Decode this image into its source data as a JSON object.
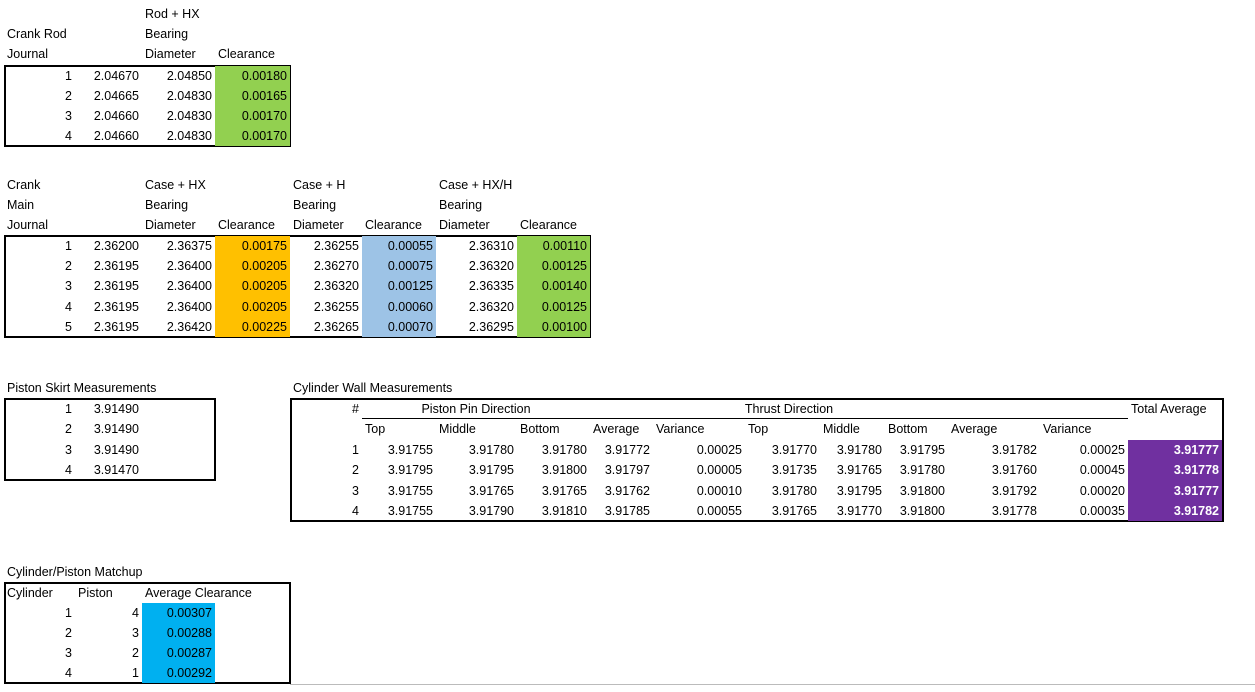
{
  "crank_rod": {
    "header": {
      "journal": [
        "Crank Rod",
        "Journal"
      ],
      "diameter": [
        "Rod + HX",
        "Bearing",
        "Diameter"
      ],
      "clearance": "Clearance"
    },
    "rows": [
      [
        "1",
        "2.04670",
        "2.04850",
        "0.00180"
      ],
      [
        "2",
        "2.04665",
        "2.04830",
        "0.00165"
      ],
      [
        "3",
        "2.04660",
        "2.04830",
        "0.00170"
      ],
      [
        "4",
        "2.04660",
        "2.04830",
        "0.00170"
      ]
    ]
  },
  "crank_main": {
    "header": {
      "journal": [
        "Crank",
        "Main",
        "Journal"
      ],
      "groups": [
        {
          "diameter": [
            "Case + HX",
            "Bearing",
            "Diameter"
          ],
          "clearance": "Clearance"
        },
        {
          "diameter": [
            "Case + H",
            "Bearing",
            "Diameter"
          ],
          "clearance": "Clearance"
        },
        {
          "diameter": [
            "Case + HX/H",
            "Bearing",
            "Diameter"
          ],
          "clearance": "Clearance"
        }
      ]
    },
    "rows": [
      [
        "1",
        "2.36200",
        "2.36375",
        "0.00175",
        "2.36255",
        "0.00055",
        "2.36310",
        "0.00110"
      ],
      [
        "2",
        "2.36195",
        "2.36400",
        "0.00205",
        "2.36270",
        "0.00075",
        "2.36320",
        "0.00125"
      ],
      [
        "3",
        "2.36195",
        "2.36400",
        "0.00205",
        "2.36320",
        "0.00125",
        "2.36335",
        "0.00140"
      ],
      [
        "4",
        "2.36195",
        "2.36400",
        "0.00205",
        "2.36255",
        "0.00060",
        "2.36320",
        "0.00125"
      ],
      [
        "5",
        "2.36195",
        "2.36420",
        "0.00225",
        "2.36265",
        "0.00070",
        "2.36295",
        "0.00100"
      ]
    ]
  },
  "piston_skirt": {
    "title": "Piston Skirt Measurements",
    "rows": [
      [
        "1",
        "3.91490"
      ],
      [
        "2",
        "3.91490"
      ],
      [
        "3",
        "3.91490"
      ],
      [
        "4",
        "3.91470"
      ]
    ]
  },
  "cylinder_wall": {
    "title": "Cylinder Wall Measurements",
    "hash": "#",
    "pin_direction": "Piston Pin Direction",
    "thrust_direction": "Thrust Direction",
    "total_average": "Total Average",
    "columns": [
      "Top",
      "Middle",
      "Bottom",
      "Average",
      "Variance",
      "Top",
      "Middle",
      "Bottom",
      "Average",
      "Variance"
    ],
    "rows": [
      [
        "1",
        "3.91755",
        "3.91780",
        "3.91780",
        "3.91772",
        "0.00025",
        "3.91770",
        "3.91780",
        "3.91795",
        "3.91782",
        "0.00025",
        "3.91777"
      ],
      [
        "2",
        "3.91795",
        "3.91795",
        "3.91800",
        "3.91797",
        "0.00005",
        "3.91735",
        "3.91765",
        "3.91780",
        "3.91760",
        "0.00045",
        "3.91778"
      ],
      [
        "3",
        "3.91755",
        "3.91765",
        "3.91765",
        "3.91762",
        "0.00010",
        "3.91780",
        "3.91795",
        "3.91800",
        "3.91792",
        "0.00020",
        "3.91777"
      ],
      [
        "4",
        "3.91755",
        "3.91790",
        "3.91810",
        "3.91785",
        "0.00055",
        "3.91765",
        "3.91770",
        "3.91800",
        "3.91778",
        "0.00035",
        "3.91782"
      ]
    ]
  },
  "matchup": {
    "title": "Cylinder/Piston Matchup",
    "columns": [
      "Cylinder",
      "Piston",
      "Average Clearance"
    ],
    "rows": [
      [
        "1",
        "4",
        "0.00307"
      ],
      [
        "2",
        "3",
        "0.00288"
      ],
      [
        "3",
        "2",
        "0.00287"
      ],
      [
        "4",
        "1",
        "0.00292"
      ]
    ]
  }
}
